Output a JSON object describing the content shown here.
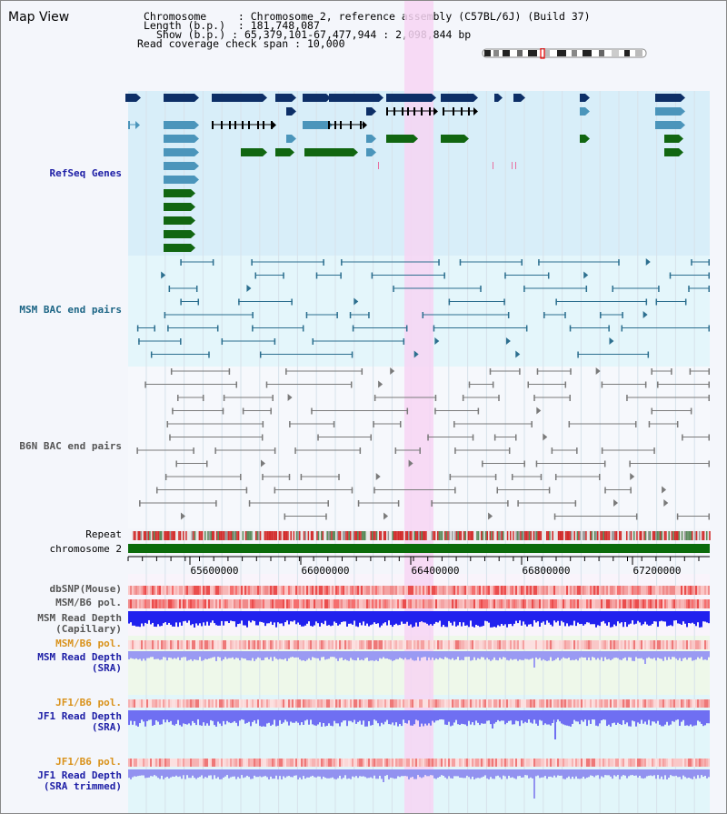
{
  "app_title": "Map View",
  "header": {
    "chromosome_label": "Chromosome",
    "chromosome_value": "Chromosome 2, reference assembly (C57BL/6J) (Build 37)",
    "length_label": "Length (b.p.)",
    "length_value": "181,748,087",
    "show_label": "Show (b.p.)",
    "show_value": "65,379,101-67,477,944 : 2,098,844 bp",
    "coverage_label": "Read coverage check span",
    "coverage_value": "10,000"
  },
  "tracks": {
    "refseq": "RefSeq Genes",
    "msm_bac": "MSM BAC end pairs",
    "b6n_bac": "B6N BAC end pairs",
    "repeat": "Repeat",
    "chromosome": "chromosome 2",
    "dbsnp": "dbSNP(Mouse)",
    "msm_b6_pol_1": "MSM/B6 pol.",
    "msm_depth_cap_1": "MSM Read Depth",
    "msm_depth_cap_2": "(Capillary)",
    "msm_b6_pol_2": "MSM/B6 pol.",
    "msm_depth_sra_1": "MSM Read Depth",
    "msm_depth_sra_2": "(SRA)",
    "jf1_b6_pol_1": "JF1/B6 pol.",
    "jf1_depth_sra_1": "JF1 Read Depth",
    "jf1_depth_sra_2": "(SRA)",
    "jf1_b6_pol_2": "JF1/B6 pol.",
    "jf1_depth_trim_1": "JF1 Read Depth",
    "jf1_depth_trim_2": "(SRA trimmed)"
  },
  "ruler": {
    "ticks": [
      "65600000",
      "66000000",
      "66400000",
      "66800000",
      "67200000"
    ]
  },
  "colors": {
    "refseq_bg": "#d8eef9",
    "msm_bg": "#e4f6fb",
    "b6n_bg": "#f6f8fc",
    "highlight": "#f7d5f3",
    "gene_dark": "#0d2f67",
    "gene_light": "#4b95bb",
    "gene_green": "#116611",
    "msm_pair": "#2c6f8f",
    "b6n_pair": "#7a7a7a",
    "chromosome_bar": "#0b6b0b",
    "label_blue": "#1d1ea6",
    "label_teal": "#1c6585",
    "label_gray": "#555555",
    "label_orange": "#d9921b"
  }
}
